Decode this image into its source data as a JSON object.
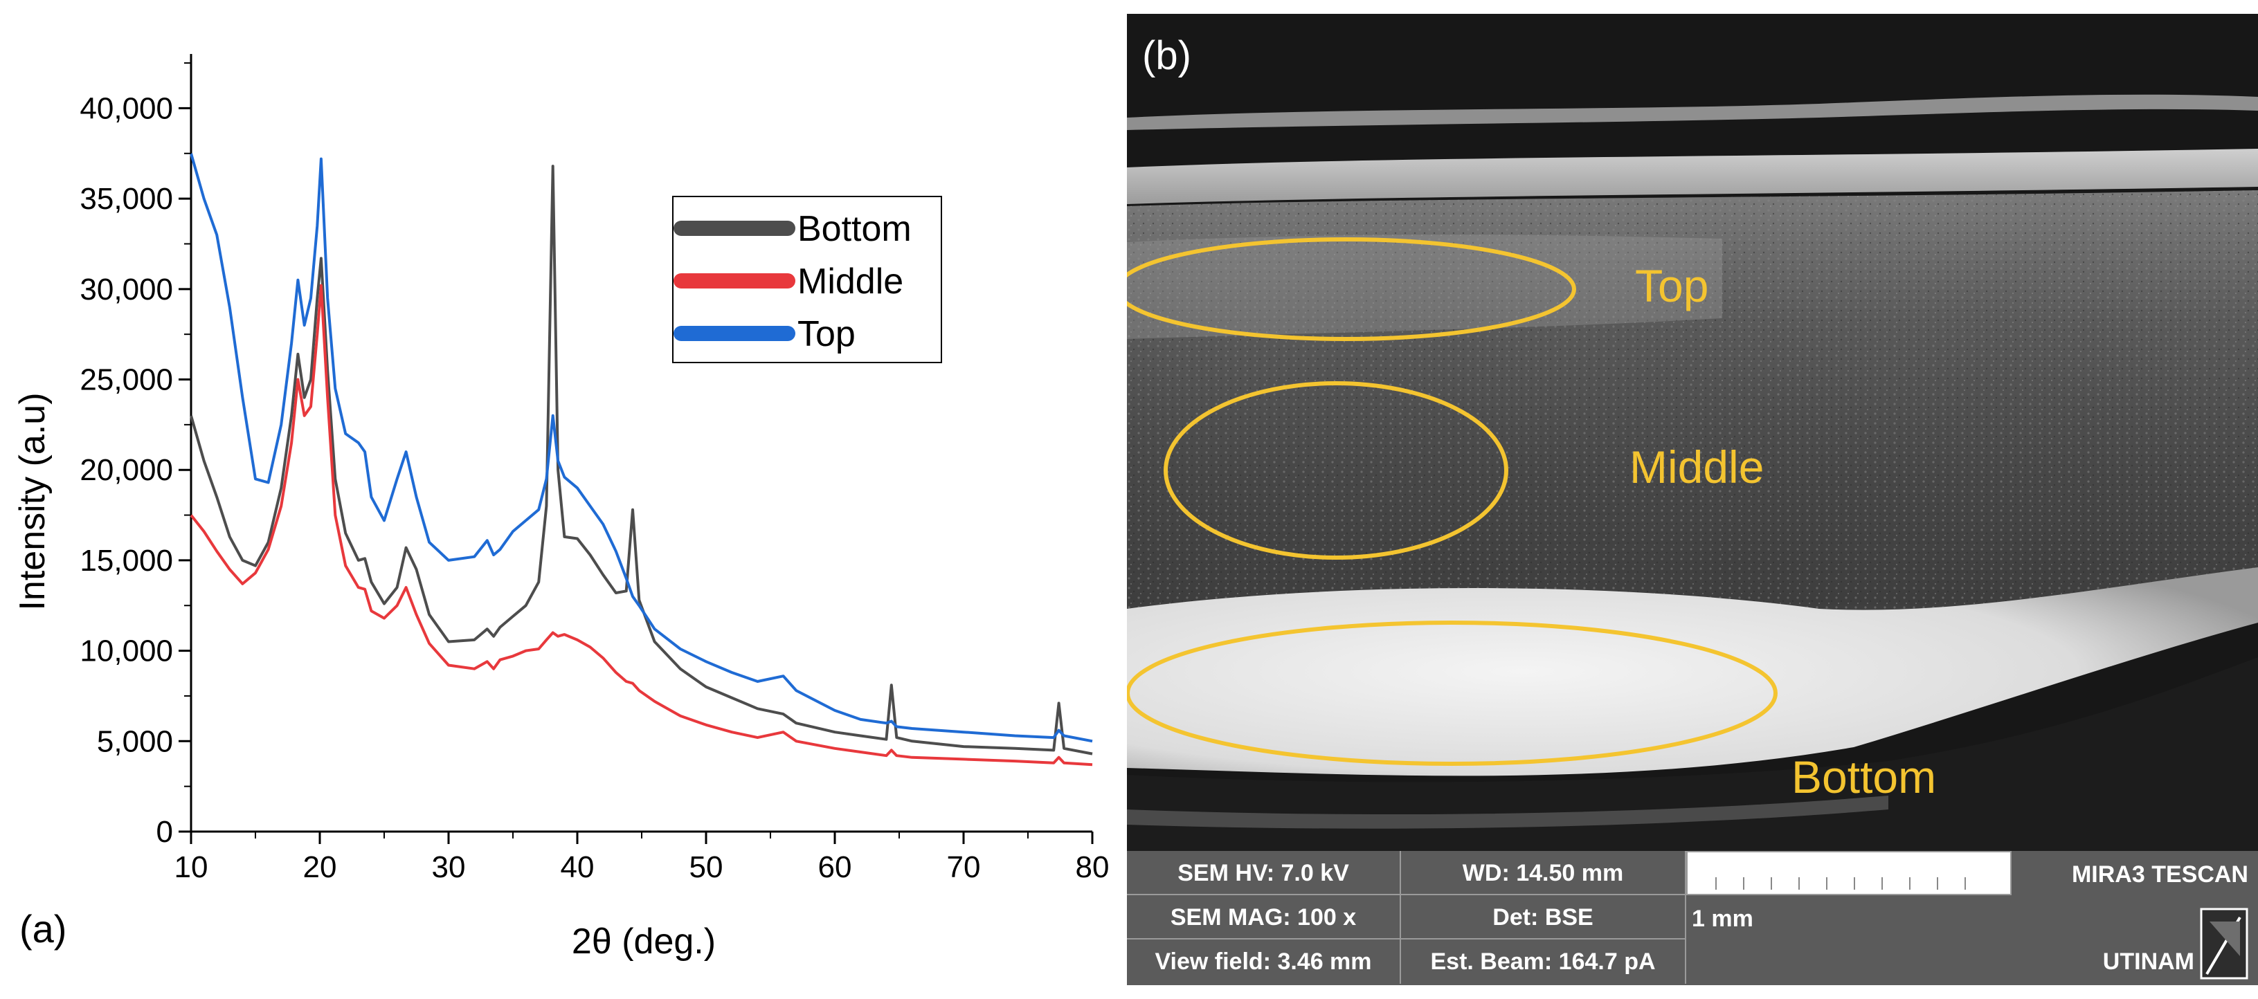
{
  "chart_data": {
    "type": "line",
    "panel_label": "(a)",
    "xlabel": "2θ (deg.)",
    "ylabel": "Intensity (a.u)",
    "xlim": [
      10,
      80
    ],
    "ylim": [
      0,
      43000
    ],
    "xticks": [
      10,
      20,
      30,
      40,
      50,
      60,
      70,
      80
    ],
    "yticks": [
      0,
      5000,
      10000,
      15000,
      20000,
      25000,
      30000,
      35000,
      40000
    ],
    "ytick_labels": [
      "0",
      "5,000",
      "10,000",
      "15,000",
      "20,000",
      "25,000",
      "30,000",
      "35,000",
      "40,000"
    ],
    "legend_position": "upper-right",
    "series": [
      {
        "name": "Bottom",
        "color": "#4d4d4d",
        "x": [
          10,
          11,
          12,
          13,
          14,
          15,
          16,
          17,
          17.8,
          18.3,
          18.8,
          19.3,
          19.8,
          20.1,
          20.6,
          21.2,
          22,
          23,
          23.5,
          24,
          25,
          26,
          26.7,
          27.5,
          28.5,
          30,
          32,
          33,
          33.5,
          34,
          35,
          36,
          37,
          37.6,
          38.1,
          38.5,
          39,
          40,
          41,
          42,
          43,
          43.8,
          44.3,
          44.8,
          46,
          48,
          50,
          52,
          54,
          56,
          57,
          60,
          62,
          64,
          64.4,
          64.8,
          66,
          70,
          74,
          77,
          77.4,
          77.8,
          80
        ],
        "y": [
          23000,
          20500,
          18500,
          16300,
          15000,
          14700,
          16000,
          19000,
          23000,
          26400,
          24000,
          25000,
          29500,
          31700,
          25500,
          19500,
          16500,
          15000,
          15100,
          13800,
          12600,
          13500,
          15700,
          14500,
          12000,
          10500,
          10600,
          11200,
          10800,
          11300,
          11900,
          12500,
          13800,
          18000,
          36800,
          20000,
          16300,
          16200,
          15300,
          14200,
          13200,
          13300,
          17800,
          12800,
          10500,
          9000,
          8000,
          7400,
          6800,
          6500,
          6000,
          5500,
          5300,
          5100,
          8100,
          5200,
          5000,
          4700,
          4600,
          4500,
          7100,
          4600,
          4300
        ]
      },
      {
        "name": "Middle",
        "color": "#e8383c",
        "x": [
          10,
          11,
          12,
          13,
          14,
          15,
          16,
          17,
          17.8,
          18.3,
          18.8,
          19.3,
          19.8,
          20.1,
          20.6,
          21.2,
          22,
          23,
          23.5,
          24,
          25,
          26,
          26.7,
          27.5,
          28.5,
          30,
          32,
          33,
          33.5,
          34,
          35,
          36,
          37,
          37.6,
          38.1,
          38.5,
          39,
          40,
          41,
          42,
          43,
          43.8,
          44.3,
          44.8,
          46,
          48,
          50,
          52,
          54,
          56,
          57,
          60,
          62,
          64,
          64.4,
          64.8,
          66,
          70,
          74,
          77,
          77.4,
          77.8,
          80
        ],
        "y": [
          17500,
          16600,
          15500,
          14500,
          13700,
          14300,
          15600,
          18000,
          21500,
          25000,
          23000,
          23500,
          27500,
          30200,
          24000,
          17500,
          14700,
          13500,
          13400,
          12200,
          11800,
          12500,
          13500,
          12000,
          10400,
          9200,
          9000,
          9400,
          9000,
          9500,
          9700,
          10000,
          10100,
          10600,
          11000,
          10800,
          10900,
          10600,
          10200,
          9600,
          8800,
          8300,
          8200,
          7800,
          7200,
          6400,
          5900,
          5500,
          5200,
          5500,
          5000,
          4600,
          4400,
          4200,
          4500,
          4200,
          4100,
          4000,
          3900,
          3800,
          4100,
          3800,
          3700
        ]
      },
      {
        "name": "Top",
        "color": "#1f6bd4",
        "x": [
          10,
          11,
          12,
          13,
          14,
          15,
          16,
          17,
          17.8,
          18.3,
          18.8,
          19.3,
          19.8,
          20.1,
          20.6,
          21.2,
          22,
          23,
          23.5,
          24,
          25,
          26,
          26.7,
          27.5,
          28.5,
          30,
          32,
          33,
          33.5,
          34,
          35,
          36,
          37,
          37.6,
          38.1,
          38.5,
          39,
          40,
          41,
          42,
          43,
          43.8,
          44.3,
          44.8,
          46,
          48,
          50,
          52,
          54,
          56,
          57,
          60,
          62,
          64,
          64.4,
          64.8,
          66,
          70,
          74,
          77,
          77.4,
          77.8,
          80
        ],
        "y": [
          37500,
          35000,
          33000,
          29000,
          24000,
          19500,
          19300,
          22500,
          27000,
          30500,
          28000,
          29500,
          33500,
          37200,
          29500,
          24500,
          22000,
          21500,
          21000,
          18500,
          17200,
          19500,
          21000,
          18500,
          16000,
          15000,
          15200,
          16100,
          15300,
          15600,
          16600,
          17200,
          17800,
          19500,
          23000,
          20500,
          19600,
          19000,
          18000,
          17000,
          15500,
          14000,
          13000,
          12500,
          11200,
          10100,
          9400,
          8800,
          8300,
          8600,
          7800,
          6700,
          6200,
          6000,
          6100,
          5800,
          5700,
          5500,
          5300,
          5200,
          5600,
          5300,
          5000
        ]
      }
    ]
  },
  "sem": {
    "panel_label": "(b)",
    "regions": {
      "top": "Top",
      "middle": "Middle",
      "bottom": "Bottom"
    },
    "info": {
      "hv": "SEM HV: 7.0 kV",
      "wd": "WD: 14.50 mm",
      "mag": "SEM MAG: 100 x",
      "det": "Det: BSE",
      "view_field": "View field: 3.46 mm",
      "beam": "Est. Beam: 164.7 pA",
      "scale_label": "1 mm",
      "brand": "MIRA3 TESCAN",
      "lab": "UTINAM"
    },
    "colors": {
      "ellipse": "#f4c430",
      "bar": "#5b5b5b"
    }
  }
}
